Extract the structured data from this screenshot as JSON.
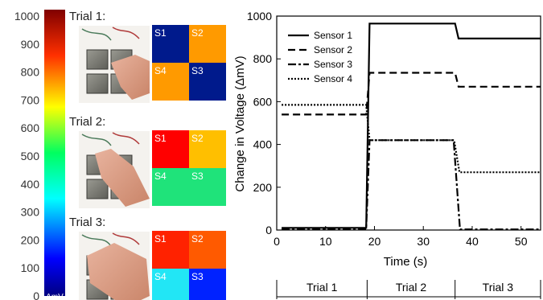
{
  "colorbar": {
    "ticks": [
      "1000",
      "900",
      "800",
      "700",
      "600",
      "500",
      "400",
      "300",
      "200",
      "100",
      "0"
    ],
    "unit_label": "ΔmV"
  },
  "trials": [
    {
      "label": "Trial 1:",
      "cells": [
        {
          "label": "S1",
          "color": "#001a8c"
        },
        {
          "label": "S2",
          "color": "#ff9a00"
        },
        {
          "label": "S4",
          "color": "#ff9a00"
        },
        {
          "label": "S3",
          "color": "#001a8c"
        }
      ]
    },
    {
      "label": "Trial 2:",
      "cells": [
        {
          "label": "S1",
          "color": "#ff0000"
        },
        {
          "label": "S2",
          "color": "#ffbf00"
        },
        {
          "label": "S4",
          "color": "#1fe37a"
        },
        {
          "label": "S3",
          "color": "#1fe37a"
        }
      ]
    },
    {
      "label": "Trial 3:",
      "cells": [
        {
          "label": "S1",
          "color": "#ff2200"
        },
        {
          "label": "S2",
          "color": "#ff5a00"
        },
        {
          "label": "S4",
          "color": "#22e6f5"
        },
        {
          "label": "S3",
          "color": "#0022ff"
        }
      ]
    }
  ],
  "chart_data": {
    "type": "line",
    "title": "",
    "xlabel": "Time (s)",
    "ylabel": "Change in Voltage (ΔmV)",
    "xlim": [
      0,
      54
    ],
    "ylim": [
      0,
      1000
    ],
    "xticks": [
      0,
      10,
      20,
      30,
      40,
      50
    ],
    "yticks": [
      0,
      200,
      400,
      600,
      800,
      1000
    ],
    "grid": false,
    "legend_position": "top-left",
    "series": [
      {
        "name": "Sensor 1",
        "style": "solid",
        "x": [
          1,
          18.3,
          19.0,
          36.5,
          37.2,
          54
        ],
        "y": [
          10,
          10,
          965,
          965,
          895,
          895
        ]
      },
      {
        "name": "Sensor 2",
        "style": "dashed",
        "x": [
          1,
          18.3,
          19.0,
          36.5,
          37.2,
          54
        ],
        "y": [
          540,
          540,
          735,
          735,
          670,
          670
        ]
      },
      {
        "name": "Sensor 3",
        "style": "dashdot",
        "x": [
          1,
          18.3,
          19.0,
          36.2,
          37.5,
          54
        ],
        "y": [
          5,
          5,
          420,
          420,
          3,
          3
        ]
      },
      {
        "name": "Sensor 4",
        "style": "dotted",
        "x": [
          1,
          18.3,
          19.0,
          36.3,
          37.4,
          54
        ],
        "y": [
          585,
          585,
          420,
          420,
          270,
          270
        ]
      }
    ],
    "phases": [
      {
        "label": "Trial 1",
        "x_start": 0,
        "x_end": 18.5
      },
      {
        "label": "Trial 2",
        "x_start": 18.5,
        "x_end": 36.5
      },
      {
        "label": "Trial 3",
        "x_start": 36.5,
        "x_end": 54
      }
    ]
  }
}
